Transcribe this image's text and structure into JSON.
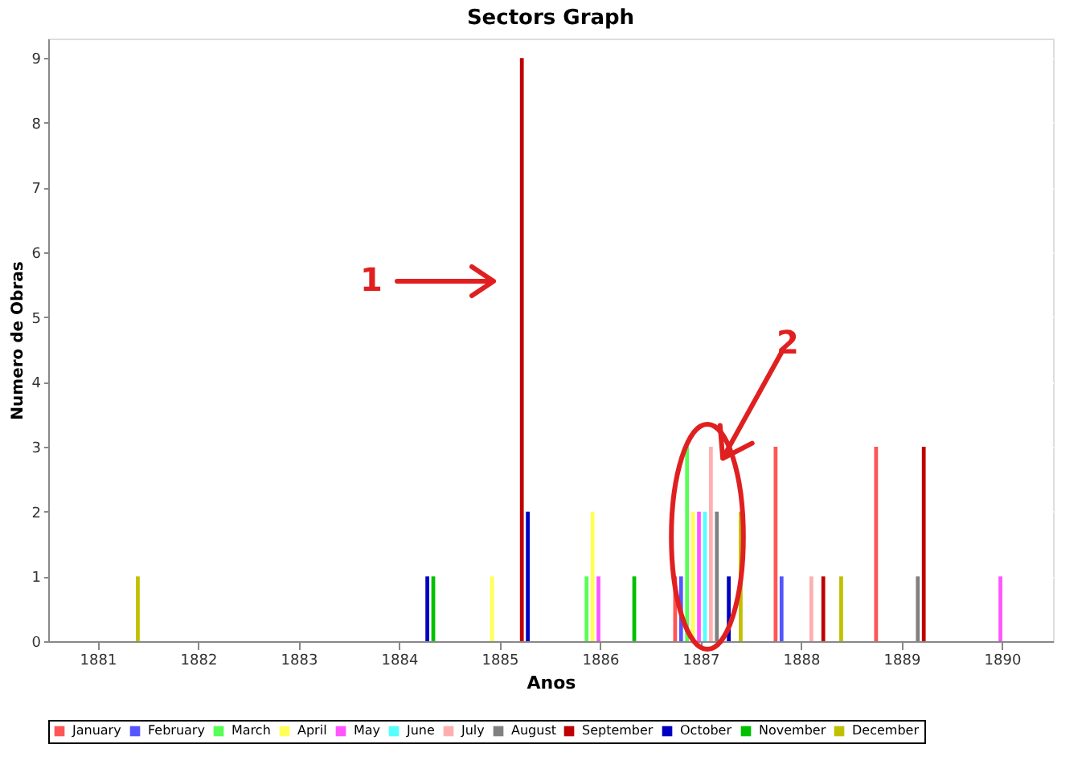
{
  "chart_data": {
    "type": "bar",
    "title": "Sectors Graph",
    "xlabel": "Anos",
    "ylabel": "Numero de Obras",
    "categories": [
      "1881",
      "1882",
      "1883",
      "1884",
      "1885",
      "1886",
      "1887",
      "1888",
      "1889",
      "1890"
    ],
    "series": [
      {
        "name": "January",
        "color": "#ff5555",
        "values": [
          0,
          0,
          0,
          0,
          0,
          0,
          1,
          3,
          3,
          0
        ]
      },
      {
        "name": "February",
        "color": "#5555ff",
        "values": [
          0,
          0,
          0,
          0,
          0,
          0,
          1,
          1,
          0,
          0
        ]
      },
      {
        "name": "March",
        "color": "#55ff55",
        "values": [
          0,
          0,
          0,
          0,
          0,
          1,
          3,
          0,
          0,
          0
        ]
      },
      {
        "name": "April",
        "color": "#ffff55",
        "values": [
          0,
          0,
          0,
          0,
          1,
          2,
          2,
          0,
          0,
          0
        ]
      },
      {
        "name": "May",
        "color": "#ff55ff",
        "values": [
          0,
          0,
          0,
          0,
          0,
          1,
          2,
          0,
          0,
          1
        ]
      },
      {
        "name": "June",
        "color": "#55ffff",
        "values": [
          0,
          0,
          0,
          0,
          0,
          0,
          2,
          0,
          0,
          0
        ]
      },
      {
        "name": "July",
        "color": "#ffafaf",
        "values": [
          0,
          0,
          0,
          0,
          0,
          0,
          3,
          1,
          0,
          0
        ]
      },
      {
        "name": "August",
        "color": "#808080",
        "values": [
          0,
          0,
          0,
          0,
          0,
          0,
          2,
          0,
          1,
          0
        ]
      },
      {
        "name": "September",
        "color": "#c00000",
        "values": [
          0,
          0,
          0,
          0,
          9,
          0,
          0,
          1,
          3,
          0
        ]
      },
      {
        "name": "October",
        "color": "#0000c0",
        "values": [
          0,
          0,
          0,
          1,
          2,
          0,
          1,
          0,
          0,
          0
        ]
      },
      {
        "name": "November",
        "color": "#00c000",
        "values": [
          0,
          0,
          0,
          1,
          0,
          1,
          0,
          0,
          0,
          0
        ]
      },
      {
        "name": "December",
        "color": "#c0c000",
        "values": [
          1,
          0,
          0,
          0,
          0,
          0,
          2,
          1,
          0,
          0
        ]
      }
    ],
    "ylim": [
      0,
      9.3
    ],
    "yticks": [
      0,
      1,
      2,
      3,
      4,
      5,
      6,
      7,
      8,
      9
    ],
    "grid": "y",
    "legend": "bottom",
    "annotations": [
      "1",
      "2"
    ]
  }
}
